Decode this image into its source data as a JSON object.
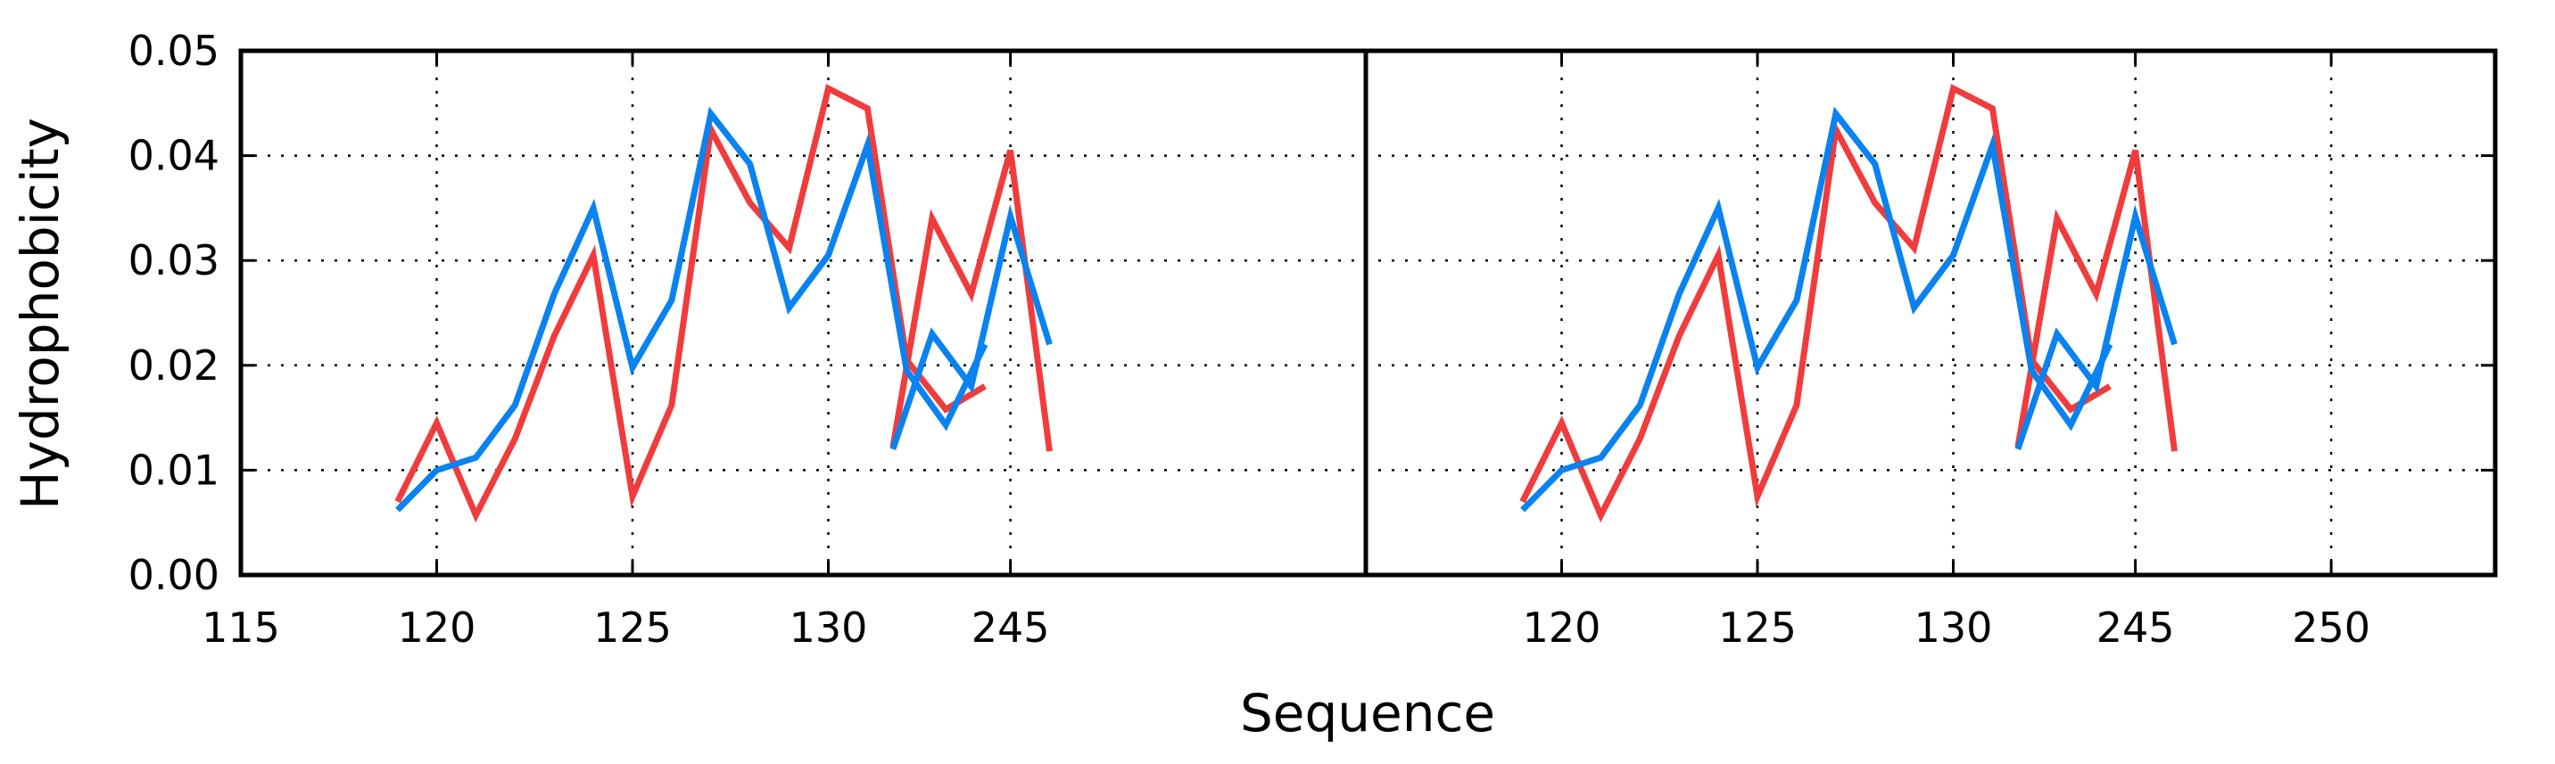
{
  "chart_data": {
    "type": "line",
    "xlabel": "Sequence",
    "ylabel": "Hydrophobicity",
    "ylim": [
      0,
      0.05
    ],
    "y_ticks": [
      "0.00",
      "0.01",
      "0.02",
      "0.03",
      "0.04",
      "0.05"
    ],
    "grid": true,
    "broken_x_axis": true,
    "colors": {
      "red": "#f03c3c",
      "blue": "#0a82f0"
    },
    "panels": [
      {
        "x_tick_labels": [
          "115",
          "120",
          "125",
          "130",
          "245"
        ],
        "segments": [
          {
            "xlim": [
              115,
              134.5
            ],
            "ticks": [
              115,
              120,
              125,
              130
            ]
          },
          {
            "xlim": [
              243,
              247
            ],
            "ticks": [
              245
            ]
          }
        ]
      },
      {
        "x_tick_labels": [
          "120",
          "125",
          "130",
          "245",
          "250"
        ],
        "segments": [
          {
            "xlim": [
              115,
              134.5
            ],
            "ticks": [
              120,
              125,
              130
            ]
          },
          {
            "xlim": [
              243,
              247
            ],
            "ticks": [
              245,
              250
            ]
          }
        ]
      }
    ],
    "series": [
      {
        "color": "red",
        "segments": [
          {
            "x": [
              119,
              120,
              121,
              122,
              123,
              124,
              125,
              126,
              127,
              128,
              129,
              130,
              131,
              132,
              133,
              134
            ],
            "y": [
              0.007,
              0.0145,
              0.0057,
              0.013,
              0.0228,
              0.0305,
              0.0075,
              0.0162,
              0.0425,
              0.0355,
              0.0312,
              0.0464,
              0.0445,
              0.0205,
              0.0158,
              0.018
            ]
          },
          {
            "x": [
              242,
              243,
              244,
              245,
              246
            ],
            "y": [
              0.0122,
              0.034,
              0.0268,
              0.0405,
              0.0118
            ]
          }
        ]
      },
      {
        "color": "blue",
        "segments": [
          {
            "x": [
              119,
              120,
              121,
              122,
              123,
              124,
              125,
              126,
              127,
              128,
              129,
              130,
              131,
              132,
              133,
              134
            ],
            "y": [
              0.0062,
              0.01,
              0.0112,
              0.0162,
              0.0268,
              0.035,
              0.0198,
              0.0262,
              0.044,
              0.0392,
              0.0255,
              0.0305,
              0.041,
              0.0195,
              0.0143,
              0.022
            ]
          },
          {
            "x": [
              242,
              243,
              244,
              245,
              246
            ],
            "y": [
              0.012,
              0.023,
              0.018,
              0.0342,
              0.022
            ]
          }
        ]
      }
    ]
  }
}
